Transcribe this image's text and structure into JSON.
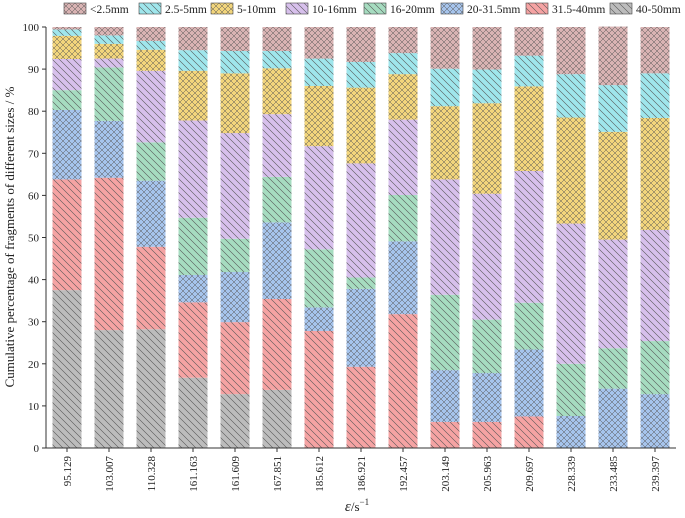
{
  "chart_data": {
    "type": "bar",
    "stacked": true,
    "title": "",
    "ylabel": "Cumulative percentage of fragments of different sizes / %",
    "xlabel_symbol": "ε",
    "xlabel_unit": "/s",
    "xlabel_unit_exp": "−1",
    "ylim": [
      0,
      100
    ],
    "yticks": [
      0,
      10,
      20,
      30,
      40,
      50,
      60,
      70,
      80,
      90,
      100
    ],
    "grid": false,
    "legend_position": "top",
    "categories": [
      "95.129",
      "103.007",
      "110.328",
      "161.163",
      "161.609",
      "167.851",
      "185.612",
      "186.921",
      "192.457",
      "203.149",
      "205.963",
      "209.697",
      "228.339",
      "233.485",
      "239.397"
    ],
    "series": [
      {
        "name": "40-50mm",
        "color": "#bcbcbc",
        "pattern": "hatch-back",
        "values": [
          37.5,
          28,
          28.2,
          16.7,
          12.8,
          13.8,
          0,
          0,
          0,
          0,
          0,
          0,
          0,
          0,
          0
        ]
      },
      {
        "name": "31.5-40mm",
        "color": "#f5a3a3",
        "pattern": "hatch-back",
        "values": [
          26.3,
          36.2,
          19.6,
          17.9,
          17.1,
          21.6,
          27.8,
          19.3,
          31.8,
          6.2,
          6.2,
          7.5,
          0,
          0,
          0
        ]
      },
      {
        "name": "20-31.5mm",
        "color": "#a6c4ec",
        "pattern": "cross",
        "values": [
          16.5,
          13.5,
          15.7,
          6.5,
          11.9,
          18.2,
          5.6,
          18.5,
          17.3,
          12.3,
          11.6,
          15.9,
          7.6,
          14.1,
          12.8
        ]
      },
      {
        "name": "16-20mm",
        "color": "#a6dcc0",
        "pattern": "hatch-back",
        "values": [
          4.7,
          12.7,
          9.1,
          13.6,
          7.9,
          10.8,
          13.8,
          2.7,
          11,
          17.9,
          12.7,
          11.1,
          12.4,
          9.6,
          12.6
        ]
      },
      {
        "name": "10-16mm",
        "color": "#d7c0ec",
        "pattern": "hatch-back",
        "values": [
          7.4,
          2.1,
          17,
          23.1,
          25.1,
          14.9,
          24.5,
          27.1,
          17.9,
          27.4,
          29.9,
          31.3,
          33.3,
          25.8,
          26.4
        ]
      },
      {
        "name": "5-10mm",
        "color": "#f2d57c",
        "pattern": "cross",
        "values": [
          5.5,
          3.5,
          5,
          11.8,
          14.2,
          10.9,
          14.3,
          18,
          10.8,
          17.4,
          21.5,
          20.1,
          25.2,
          25.6,
          26.6
        ]
      },
      {
        "name": "2.5-5mm",
        "color": "#9fe6ec",
        "pattern": "hatch-back",
        "values": [
          1.5,
          2,
          2.1,
          4.9,
          5.3,
          4.1,
          6.5,
          6.1,
          5,
          8.9,
          8,
          7.3,
          10.3,
          11.1,
          10.6
        ]
      },
      {
        "name": "<2.5mm",
        "color": "#d9b3b3",
        "pattern": "cross",
        "values": [
          0.6,
          2,
          3.3,
          5.5,
          5.7,
          5.7,
          7.5,
          8.3,
          6.2,
          9.9,
          10.1,
          6.8,
          11.2,
          13.9,
          11
        ]
      }
    ],
    "legend_order": [
      "<2.5mm",
      "2.5-5mm",
      "5-10mm",
      "10-16mm",
      "16-20mm",
      "20-31.5mm",
      "31.5-40mm",
      "40-50mm"
    ]
  }
}
